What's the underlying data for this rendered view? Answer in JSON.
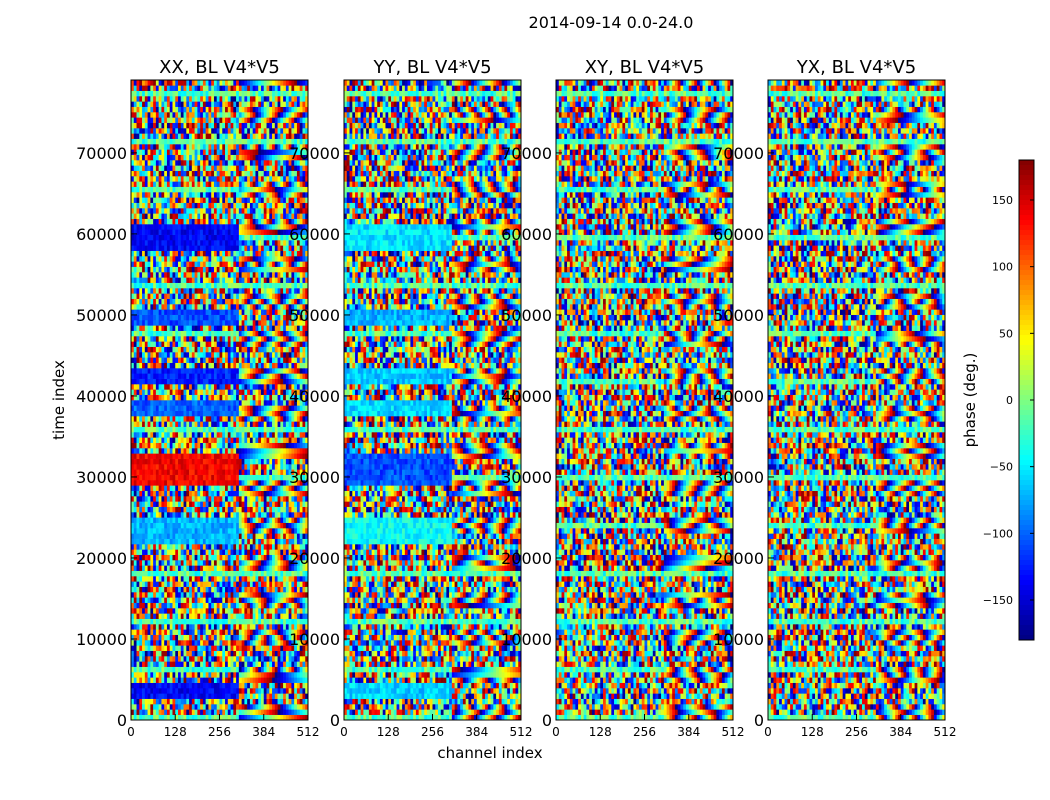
{
  "figure_title": "2014-09-14 0.0-24.0",
  "chart_data": {
    "type": "heatmap",
    "xlabel": "channel index",
    "ylabel": "time index",
    "xlim": [
      0,
      512
    ],
    "ylim": [
      0,
      79000
    ],
    "x_ticks": [
      0,
      128,
      256,
      384,
      512
    ],
    "y_ticks": [
      0,
      10000,
      20000,
      30000,
      40000,
      50000,
      60000,
      70000
    ],
    "panels": [
      {
        "title": "XX, BL V4*V5",
        "pol": "XX"
      },
      {
        "title": "YY, BL V4*V5",
        "pol": "YY"
      },
      {
        "title": "XY, BL V4*V5",
        "pol": "XY"
      },
      {
        "title": "YX, BL V4*V5",
        "pol": "YX"
      }
    ],
    "colorbar": {
      "label": "phase (deg.)",
      "range": [
        -180,
        180
      ],
      "ticks": [
        150,
        100,
        50,
        0,
        -50,
        -100,
        -150
      ],
      "tick_labels": [
        "150",
        "100",
        "50",
        "0",
        "−50",
        "−100",
        "−150"
      ],
      "colormap": "jet"
    }
  }
}
